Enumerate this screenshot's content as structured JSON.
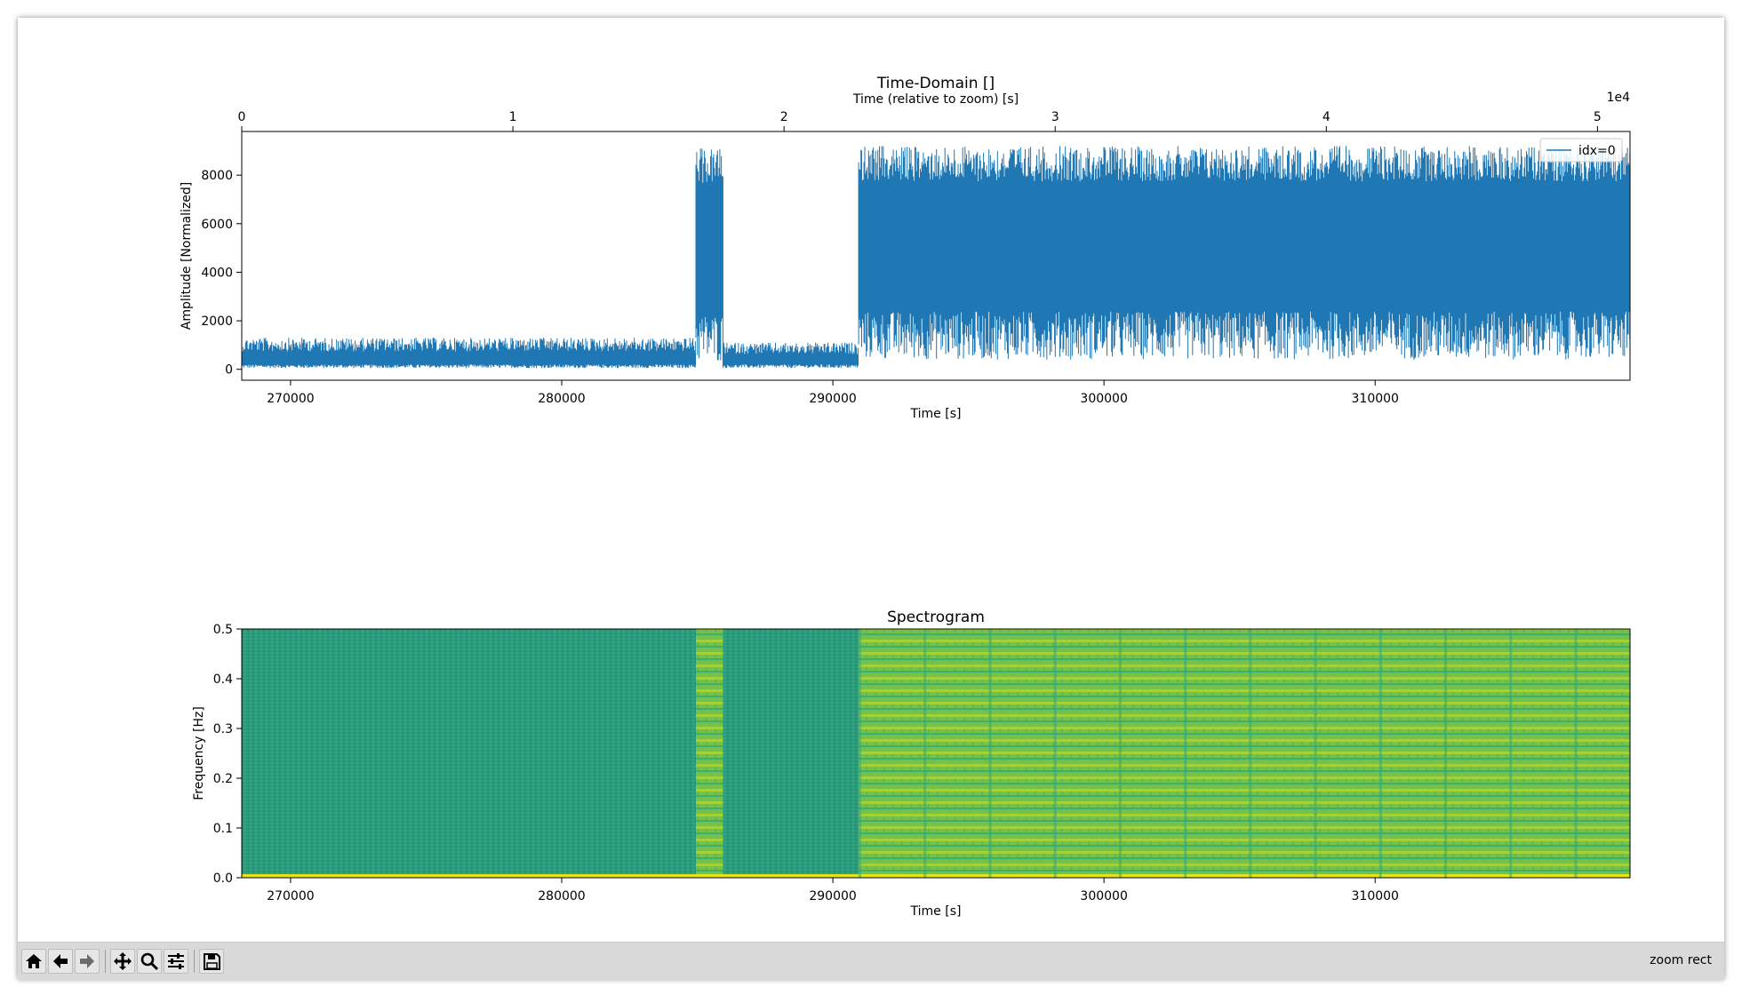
{
  "toolbar": {
    "buttons": [
      {
        "name": "home-icon",
        "tooltip": "Reset original view"
      },
      {
        "name": "back-arrow-icon",
        "tooltip": "Back to previous view"
      },
      {
        "name": "forward-arrow-icon",
        "tooltip": "Forward to next view"
      },
      {
        "name": "pan-move-icon",
        "tooltip": "Pan"
      },
      {
        "name": "zoom-magnifier-icon",
        "tooltip": "Zoom to rectangle"
      },
      {
        "name": "configure-sliders-icon",
        "tooltip": "Configure subplots"
      },
      {
        "name": "save-floppy-icon",
        "tooltip": "Save the figure"
      }
    ],
    "status": "zoom rect"
  },
  "chart_data": [
    {
      "type": "line",
      "title": "Time-Domain []",
      "xlabel": "Time [s]",
      "ylabel": "Amplitude [Normalized]",
      "top_xlabel": "Time (relative to zoom) [s]",
      "top_offset_label": "1e4",
      "xlim": [
        268200,
        319400
      ],
      "ylim": [
        -450,
        9800
      ],
      "xticks": [
        270000,
        280000,
        290000,
        300000,
        310000
      ],
      "xtick_labels": [
        "270000",
        "280000",
        "290000",
        "300000",
        "310000"
      ],
      "top_xticks": [
        0,
        1,
        2,
        3,
        4,
        5
      ],
      "top_xtick_labels": [
        "0",
        "1",
        "2",
        "3",
        "4",
        "5"
      ],
      "yticks": [
        0,
        2000,
        4000,
        6000,
        8000
      ],
      "ytick_labels": [
        "0",
        "2000",
        "4000",
        "6000",
        "8000"
      ],
      "grid": false,
      "legend": {
        "entries": [
          "idx=0"
        ],
        "placement": "top-right"
      },
      "series": [
        {
          "name": "idx=0",
          "color": "#1f77b4",
          "segments": [
            {
              "x_start": 268200,
              "x_end": 284950,
              "min": 50,
              "max": 1300
            },
            {
              "x_start": 284950,
              "x_end": 285950,
              "min": 0,
              "max": 9100
            },
            {
              "x_start": 285950,
              "x_end": 290950,
              "min": 50,
              "max": 1100
            },
            {
              "x_start": 290950,
              "x_end": 319400,
              "min": 100,
              "max": 9200
            }
          ]
        }
      ]
    },
    {
      "type": "heatmap",
      "title": "Spectrogram",
      "xlabel": "Time [s]",
      "ylabel": "Frequency [Hz]",
      "xlim": [
        268200,
        319400
      ],
      "ylim": [
        0.0,
        0.5
      ],
      "xticks": [
        270000,
        280000,
        290000,
        300000,
        310000
      ],
      "xtick_labels": [
        "270000",
        "280000",
        "290000",
        "300000",
        "310000"
      ],
      "yticks": [
        0.0,
        0.1,
        0.2,
        0.3,
        0.4,
        0.5
      ],
      "ytick_labels": [
        "0.0",
        "0.1",
        "0.2",
        "0.3",
        "0.4",
        "0.5"
      ],
      "colormap": "viridis",
      "regions": [
        {
          "x_start": 268200,
          "x_end": 284950,
          "level": "low",
          "color": "#2a9b7c"
        },
        {
          "x_start": 284950,
          "x_end": 285950,
          "level": "high",
          "color": "#8cc640"
        },
        {
          "x_start": 285950,
          "x_end": 290950,
          "level": "low",
          "color": "#2a9b7c"
        },
        {
          "x_start": 290950,
          "x_end": 319400,
          "level": "high",
          "color": "#7cc448"
        }
      ]
    }
  ]
}
